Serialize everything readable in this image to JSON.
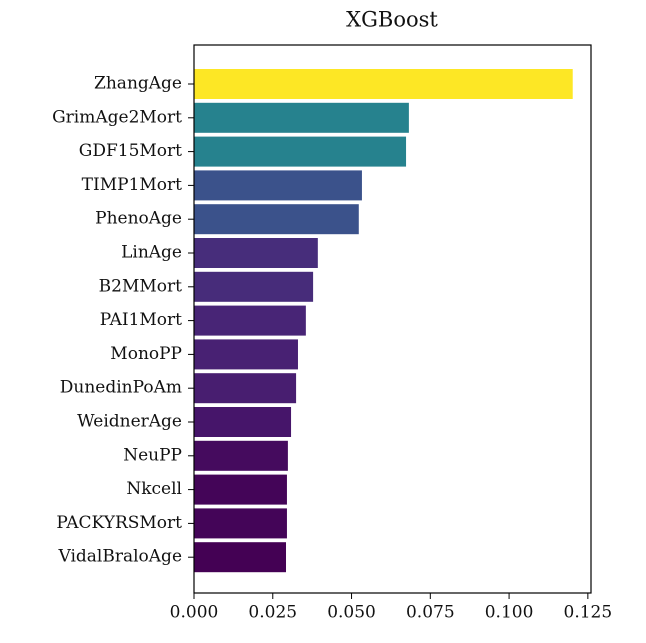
{
  "chart_data": {
    "type": "barh",
    "title": "XGBoost",
    "categories": [
      "ZhangAge",
      "GrimAge2Mort",
      "GDF15Mort",
      "TIMP1Mort",
      "PhenoAge",
      "LinAge",
      "B2MMort",
      "PAI1Mort",
      "MonoPP",
      "DunedinPoAm",
      "WeidnerAge",
      "NeuPP",
      "Nkcell",
      "PACKYRSMort",
      "VidalBraloAge"
    ],
    "values": [
      0.1202,
      0.0682,
      0.0673,
      0.0533,
      0.0523,
      0.0393,
      0.0378,
      0.0355,
      0.033,
      0.0324,
      0.0308,
      0.0298,
      0.0295,
      0.0295,
      0.0292
    ],
    "colors": [
      "#fde725",
      "#26828e",
      "#26828e",
      "#3b528b",
      "#3b528b",
      "#472d7b",
      "#472c7a",
      "#482576",
      "#482173",
      "#481e70",
      "#46156a",
      "#450b5e",
      "#440558",
      "#440558",
      "#440154"
    ],
    "xlim": [
      0,
      0.126
    ],
    "xticks": [
      {
        "value": 0,
        "label": "0.000"
      },
      {
        "value": 0.025,
        "label": "0.025"
      },
      {
        "value": 0.05,
        "label": "0.050"
      },
      {
        "value": 0.075,
        "label": "0.075"
      },
      {
        "value": 0.1,
        "label": "0.100"
      },
      {
        "value": 0.125,
        "label": "0.125"
      }
    ]
  }
}
